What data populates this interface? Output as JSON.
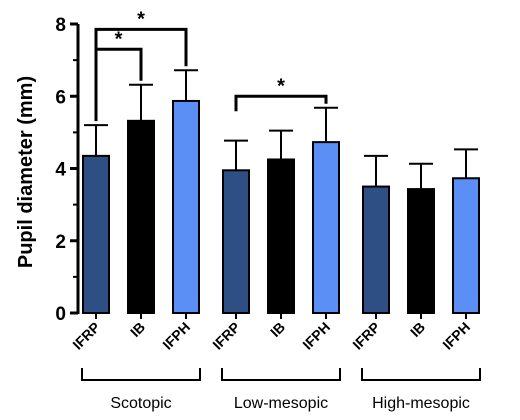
{
  "chart_data": {
    "type": "bar",
    "ylabel": "Pupil diameter (mm)",
    "ylim": [
      0,
      8
    ],
    "yticks": [
      "0",
      "2",
      "4",
      "6",
      "8"
    ],
    "groups": [
      {
        "name": "Scotopic",
        "bars": [
          {
            "label": "IFRP",
            "value": 4.35,
            "error": 0.85,
            "color": "#2e4f84"
          },
          {
            "label": "IB",
            "value": 5.32,
            "error": 1.0,
            "color": "#000000"
          },
          {
            "label": "IFPH",
            "value": 5.87,
            "error": 0.85,
            "color": "#5b8ff5"
          }
        ]
      },
      {
        "name": "Low-mesopic",
        "bars": [
          {
            "label": "IFRP",
            "value": 3.95,
            "error": 0.82,
            "color": "#2e4f84"
          },
          {
            "label": "IB",
            "value": 4.25,
            "error": 0.8,
            "color": "#000000"
          },
          {
            "label": "IFPH",
            "value": 4.73,
            "error": 0.95,
            "color": "#5b8ff5"
          }
        ]
      },
      {
        "name": "High-mesopic",
        "bars": [
          {
            "label": "IFRP",
            "value": 3.5,
            "error": 0.85,
            "color": "#2e4f84"
          },
          {
            "label": "IB",
            "value": 3.43,
            "error": 0.7,
            "color": "#000000"
          },
          {
            "label": "IFPH",
            "value": 3.73,
            "error": 0.8,
            "color": "#5b8ff5"
          }
        ]
      }
    ],
    "significance": [
      {
        "group": 0,
        "from": 0,
        "to": 1,
        "label": "*",
        "y": 7.3
      },
      {
        "group": 0,
        "from": 0,
        "to": 2,
        "label": "*",
        "y": 7.85
      },
      {
        "group": 1,
        "from": 0,
        "to": 2,
        "label": "*",
        "y": 6.0
      }
    ]
  }
}
